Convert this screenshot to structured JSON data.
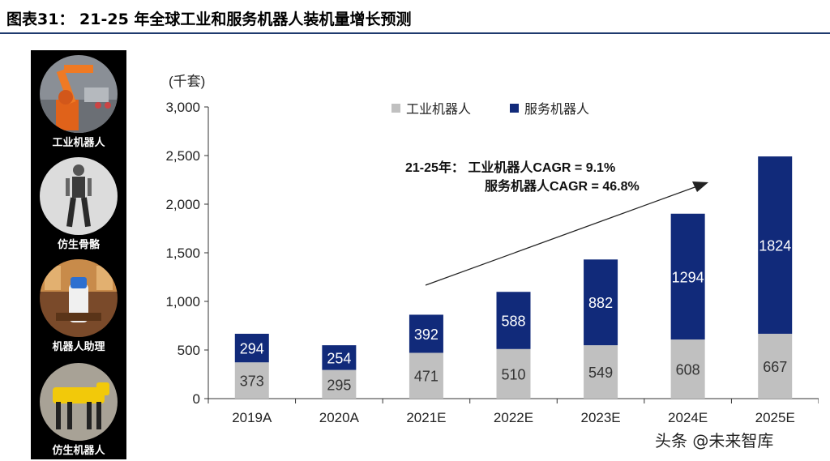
{
  "header": {
    "title": "图表31： 21-25 年全球工业和服务机器人装机量增长预测"
  },
  "side_panel": {
    "items": [
      {
        "label": "工业机器人"
      },
      {
        "label": "仿生骨骼"
      },
      {
        "label": "机器人助理"
      },
      {
        "label": "仿生机器人"
      }
    ]
  },
  "watermark": "头条 @未来智库",
  "chart_data": {
    "type": "bar",
    "stacked": true,
    "title": "",
    "unit_label": "(千套)",
    "categories": [
      "2019A",
      "2020A",
      "2021E",
      "2022E",
      "2023E",
      "2024E",
      "2025E"
    ],
    "series": [
      {
        "name": "工业机器人",
        "color": "#c0c0c0",
        "values": [
          373,
          295,
          471,
          510,
          549,
          608,
          667
        ]
      },
      {
        "name": "服务机器人",
        "color": "#112a7a",
        "values": [
          294,
          254,
          392,
          588,
          882,
          1294,
          1824
        ]
      }
    ],
    "ylim": [
      0,
      3000
    ],
    "yticks": [
      0,
      500,
      1000,
      1500,
      2000,
      2500,
      3000
    ],
    "ytick_labels": [
      "0",
      "500",
      "1,000",
      "1,500",
      "2,000",
      "2,500",
      "3,000"
    ],
    "legend_position": "top",
    "grid": false,
    "annotation": {
      "line1": "21-25年： 工业机器人CAGR = 9.1%",
      "line2": "服务机器人CAGR = 46.8%"
    }
  }
}
